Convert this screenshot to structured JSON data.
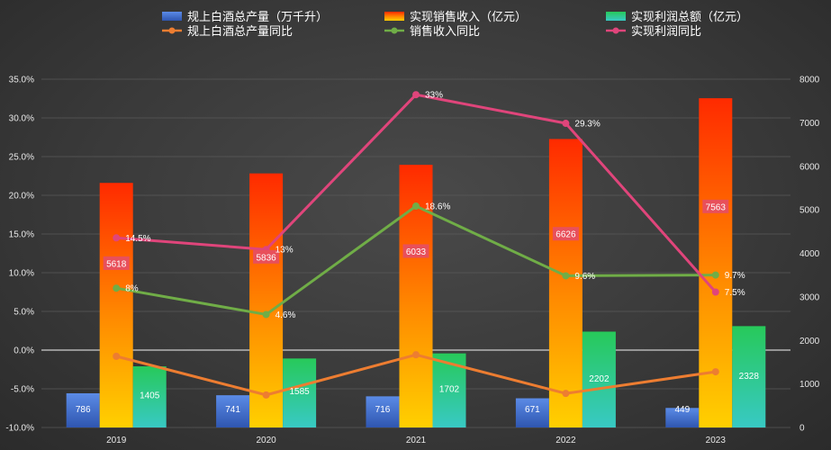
{
  "chart_data": {
    "type": "bar",
    "categories": [
      "2019",
      "2020",
      "2021",
      "2022",
      "2023"
    ],
    "bar_series": [
      {
        "name": "规上白酒总产量（万千升）",
        "values": [
          786,
          741,
          716,
          671,
          449
        ],
        "labels": [
          "786",
          "741",
          "716",
          "671",
          "449"
        ],
        "color": "#4472c4"
      },
      {
        "name": "实现销售收入（亿元）",
        "values": [
          5618,
          5836,
          6033,
          6626,
          7563
        ],
        "labels": [
          "5618",
          "5836",
          "6033",
          "6626",
          "7563"
        ],
        "color": "#f07020"
      },
      {
        "name": "实现利润总额（亿元）",
        "values": [
          1405,
          1585,
          1702,
          2202,
          2328
        ],
        "labels": [
          "1405",
          "1585",
          "1702",
          "2202",
          "2328"
        ],
        "color": "#2ec4a0"
      }
    ],
    "line_series": [
      {
        "name": "规上白酒总产量同比",
        "values": [
          -0.8,
          -5.8,
          -0.6,
          -5.6,
          -2.8
        ],
        "labels": [
          "",
          "",
          "",
          "",
          ""
        ],
        "color": "#ed7d31"
      },
      {
        "name": "销售收入同比",
        "values": [
          8.0,
          4.6,
          18.6,
          9.6,
          9.7
        ],
        "labels": [
          "8%",
          "4.6%",
          "18.6%",
          "9.6%",
          "9.7%"
        ],
        "color": "#70ad47"
      },
      {
        "name": "实现利润同比",
        "values": [
          14.5,
          13.0,
          33.0,
          29.3,
          7.5
        ],
        "labels": [
          "14.5%",
          "13%",
          "33%",
          "29.3%",
          "7.5%"
        ],
        "color": "#e0457b"
      }
    ],
    "y_left": {
      "min": -10,
      "max": 35,
      "step": 5,
      "ticks": [
        "-10.0%",
        "-5.0%",
        "0.0%",
        "5.0%",
        "10.0%",
        "15.0%",
        "20.0%",
        "25.0%",
        "30.0%",
        "35.0%"
      ]
    },
    "y_right": {
      "min": 0,
      "max": 8000,
      "step": 1000,
      "ticks": [
        "0",
        "1000",
        "2000",
        "3000",
        "4000",
        "5000",
        "6000",
        "7000",
        "8000"
      ]
    },
    "grid": true,
    "legend_position": "top"
  },
  "legend": [
    {
      "label": "规上白酒总产量（万千升）",
      "kind": "bar",
      "color": "#4472c4"
    },
    {
      "label": "实现销售收入（亿元）",
      "kind": "bar",
      "color": "#f07020"
    },
    {
      "label": "实现利润总额（亿元）",
      "kind": "bar",
      "color": "#2ec4a0"
    },
    {
      "label": "规上白酒总产量同比",
      "kind": "line",
      "color": "#ed7d31"
    },
    {
      "label": "销售收入同比",
      "kind": "line",
      "color": "#70ad47"
    },
    {
      "label": "实现利润同比",
      "kind": "line",
      "color": "#e0457b"
    }
  ]
}
